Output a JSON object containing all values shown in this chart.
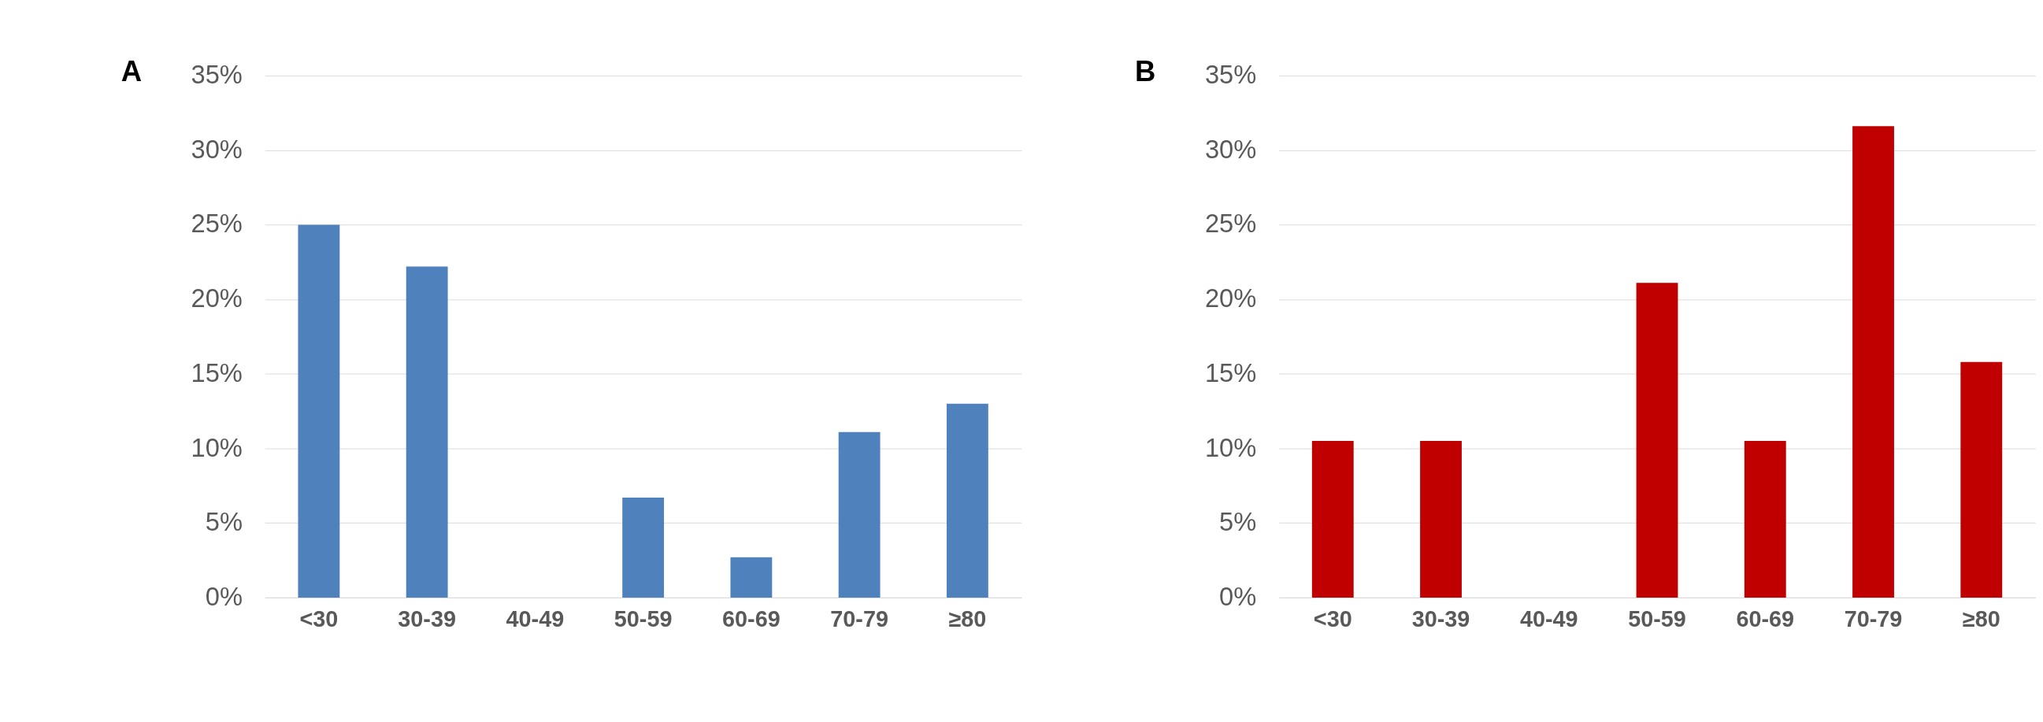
{
  "chart_data": [
    {
      "type": "bar",
      "title": "A",
      "categories": [
        "<30",
        "30-39",
        "40-49",
        "50-59",
        "60-69",
        "70-79",
        "≥80"
      ],
      "values": [
        25,
        22.2,
        0,
        6.7,
        2.7,
        11.1,
        13.0
      ],
      "color": "#4f81bd",
      "ylim": [
        0,
        35
      ],
      "yticks": [
        {
          "value": 0,
          "label": "0%"
        },
        {
          "value": 5,
          "label": "5%"
        },
        {
          "value": 10,
          "label": "10%"
        },
        {
          "value": 15,
          "label": "15%"
        },
        {
          "value": 20,
          "label": "20%"
        },
        {
          "value": 25,
          "label": "25%"
        },
        {
          "value": 30,
          "label": "30%"
        },
        {
          "value": 35,
          "label": "35%"
        }
      ],
      "grid": "y"
    },
    {
      "type": "bar",
      "title": "B",
      "categories": [
        "<30",
        "30-39",
        "40-49",
        "50-59",
        "60-69",
        "70-79",
        "≥80"
      ],
      "values": [
        10.5,
        10.5,
        0,
        21.1,
        10.5,
        31.6,
        15.8
      ],
      "color": "#c00000",
      "ylim": [
        0,
        35
      ],
      "yticks": [
        {
          "value": 0,
          "label": "0%"
        },
        {
          "value": 5,
          "label": "5%"
        },
        {
          "value": 10,
          "label": "10%"
        },
        {
          "value": 15,
          "label": "15%"
        },
        {
          "value": 20,
          "label": "20%"
        },
        {
          "value": 25,
          "label": "25%"
        },
        {
          "value": 30,
          "label": "30%"
        },
        {
          "value": 35,
          "label": "35%"
        }
      ],
      "grid": "y"
    }
  ]
}
